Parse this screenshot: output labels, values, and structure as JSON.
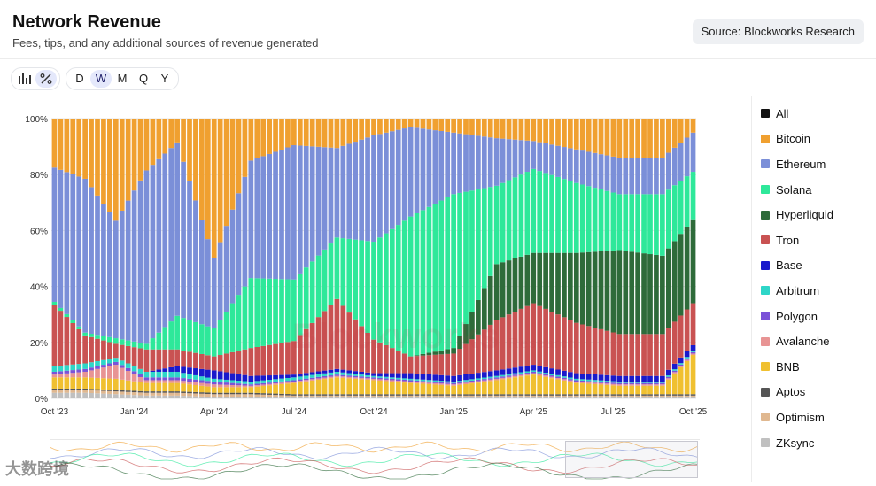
{
  "header": {
    "title": "Network Revenue",
    "subtitle": "Fees, tips, and any additional sources of revenue generated",
    "source_label": "Source: Blockworks Research"
  },
  "toolbar": {
    "view_buttons": [
      {
        "name": "bar-chart",
        "icon": "bar-chart-icon",
        "active": false
      },
      {
        "name": "percent",
        "icon": "percent-icon",
        "active": true
      }
    ],
    "intervals": [
      {
        "label": "D",
        "active": false
      },
      {
        "label": "W",
        "active": true
      },
      {
        "label": "M",
        "active": false
      },
      {
        "label": "Q",
        "active": false
      },
      {
        "label": "Y",
        "active": false
      }
    ]
  },
  "watermark": {
    "brand": "Blockworks",
    "sub": "Research"
  },
  "corner_watermark": "大数跨境",
  "legend": [
    {
      "label": "All",
      "color": "#111111"
    },
    {
      "label": "Bitcoin",
      "color": "#f0a030"
    },
    {
      "label": "Ethereum",
      "color": "#7b8fd8"
    },
    {
      "label": "Solana",
      "color": "#2ee89a"
    },
    {
      "label": "Hyperliquid",
      "color": "#2e6b3a"
    },
    {
      "label": "Tron",
      "color": "#c95252"
    },
    {
      "label": "Base",
      "color": "#1a1acc"
    },
    {
      "label": "Arbitrum",
      "color": "#2ed6c8"
    },
    {
      "label": "Polygon",
      "color": "#7b52d8"
    },
    {
      "label": "Avalanche",
      "color": "#e89494"
    },
    {
      "label": "BNB",
      "color": "#f0c030"
    },
    {
      "label": "Aptos",
      "color": "#555555"
    },
    {
      "label": "Optimism",
      "color": "#e0b890"
    },
    {
      "label": "ZKsync",
      "color": "#c0c0c0"
    }
  ],
  "chart_data": {
    "type": "bar",
    "stacking": "percent",
    "y_ticks": [
      "0%",
      "20%",
      "40%",
      "60%",
      "80%",
      "100%"
    ],
    "ylim": [
      0,
      100
    ],
    "x_ticks": [
      {
        "label": "Oct '23",
        "index": 0
      },
      {
        "label": "Jan '24",
        "index": 13
      },
      {
        "label": "Apr '24",
        "index": 26
      },
      {
        "label": "Jul '24",
        "index": 39
      },
      {
        "label": "Oct '24",
        "index": 52
      },
      {
        "label": "Jan '25",
        "index": 65
      },
      {
        "label": "Apr '25",
        "index": 78
      },
      {
        "label": "Jul '25",
        "index": 91
      },
      {
        "label": "Oct '25",
        "index": 104
      }
    ],
    "series_order": [
      "ZKsync",
      "Optimism",
      "Aptos",
      "BNB",
      "Avalanche",
      "Polygon",
      "Arbitrum",
      "Base",
      "Tron",
      "Hyperliquid",
      "Solana",
      "Ethereum",
      "Bitcoin"
    ],
    "anchors": [
      {
        "i": 0,
        "ZKsync": 2,
        "Optimism": 1,
        "Aptos": 0.5,
        "BNB": 4,
        "Avalanche": 1,
        "Polygon": 1,
        "Arbitrum": 2,
        "Base": 0,
        "Tron": 22,
        "Hyperliquid": 0,
        "Solana": 1,
        "Ethereum": 48
      },
      {
        "i": 5,
        "ZKsync": 2,
        "Optimism": 1,
        "Aptos": 0.5,
        "BNB": 4,
        "Avalanche": 2,
        "Polygon": 1,
        "Arbitrum": 2,
        "Base": 0,
        "Tron": 10,
        "Hyperliquid": 0,
        "Solana": 1,
        "Ethereum": 55
      },
      {
        "i": 10,
        "ZKsync": 1.5,
        "Optimism": 1,
        "Aptos": 0.5,
        "BNB": 4,
        "Avalanche": 5,
        "Polygon": 1,
        "Arbitrum": 1.5,
        "Base": 0,
        "Tron": 5,
        "Hyperliquid": 0,
        "Solana": 2,
        "Ethereum": 42
      },
      {
        "i": 15,
        "ZKsync": 1,
        "Optimism": 1,
        "Aptos": 0.5,
        "BNB": 3,
        "Avalanche": 1,
        "Polygon": 1,
        "Arbitrum": 2,
        "Base": 0,
        "Tron": 8,
        "Hyperliquid": 0,
        "Solana": 2,
        "Ethereum": 62
      },
      {
        "i": 20,
        "ZKsync": 1,
        "Optimism": 1,
        "Aptos": 0.5,
        "BNB": 3,
        "Avalanche": 1,
        "Polygon": 1,
        "Arbitrum": 2,
        "Base": 2,
        "Tron": 6,
        "Hyperliquid": 0,
        "Solana": 12,
        "Ethereum": 62
      },
      {
        "i": 26,
        "ZKsync": 0.5,
        "Optimism": 1,
        "Aptos": 0.5,
        "BNB": 2,
        "Avalanche": 1,
        "Polygon": 1,
        "Arbitrum": 1,
        "Base": 3,
        "Tron": 5,
        "Hyperliquid": 0,
        "Solana": 10,
        "Ethereum": 25
      },
      {
        "i": 32,
        "ZKsync": 0.5,
        "Optimism": 1,
        "Aptos": 0.5,
        "BNB": 2,
        "Avalanche": 0.5,
        "Polygon": 0.5,
        "Arbitrum": 1,
        "Base": 2,
        "Tron": 10,
        "Hyperliquid": 0,
        "Solana": 25,
        "Ethereum": 42
      },
      {
        "i": 39,
        "ZKsync": 0.5,
        "Optimism": 0.5,
        "Aptos": 0.5,
        "BNB": 4,
        "Avalanche": 0.5,
        "Polygon": 0.5,
        "Arbitrum": 1,
        "Base": 1,
        "Tron": 12,
        "Hyperliquid": 0,
        "Solana": 22,
        "Ethereum": 48
      },
      {
        "i": 46,
        "ZKsync": 0.5,
        "Optimism": 0.5,
        "Aptos": 0.5,
        "BNB": 6,
        "Avalanche": 0.5,
        "Polygon": 0.5,
        "Arbitrum": 1,
        "Base": 1,
        "Tron": 25,
        "Hyperliquid": 0,
        "Solana": 22,
        "Ethereum": 32
      },
      {
        "i": 52,
        "ZKsync": 0.5,
        "Optimism": 0.5,
        "Aptos": 0.5,
        "BNB": 5,
        "Avalanche": 0.5,
        "Polygon": 0.5,
        "Arbitrum": 0.5,
        "Base": 1,
        "Tron": 12,
        "Hyperliquid": 0,
        "Solana": 35,
        "Ethereum": 38
      },
      {
        "i": 58,
        "ZKsync": 0.5,
        "Optimism": 0.5,
        "Aptos": 0.5,
        "BNB": 4,
        "Avalanche": 0.5,
        "Polygon": 0.5,
        "Arbitrum": 0.5,
        "Base": 2,
        "Tron": 6,
        "Hyperliquid": 0,
        "Solana": 50,
        "Ethereum": 32
      },
      {
        "i": 65,
        "ZKsync": 0.5,
        "Optimism": 0.5,
        "Aptos": 0.5,
        "BNB": 3,
        "Avalanche": 0.5,
        "Polygon": 0.5,
        "Arbitrum": 0.5,
        "Base": 2,
        "Tron": 8,
        "Hyperliquid": 2,
        "Solana": 55,
        "Ethereum": 22
      },
      {
        "i": 72,
        "ZKsync": 0.5,
        "Optimism": 0.5,
        "Aptos": 0.5,
        "BNB": 5,
        "Avalanche": 0.5,
        "Polygon": 0.5,
        "Arbitrum": 0.5,
        "Base": 2,
        "Tron": 18,
        "Hyperliquid": 20,
        "Solana": 28,
        "Ethereum": 17
      },
      {
        "i": 78,
        "ZKsync": 0.5,
        "Optimism": 0.5,
        "Aptos": 0.5,
        "BNB": 7,
        "Avalanche": 0.5,
        "Polygon": 0.5,
        "Arbitrum": 0.5,
        "Base": 2,
        "Tron": 22,
        "Hyperliquid": 18,
        "Solana": 30,
        "Ethereum": 10
      },
      {
        "i": 85,
        "ZKsync": 0.5,
        "Optimism": 0.5,
        "Aptos": 0.5,
        "BNB": 4,
        "Avalanche": 0.5,
        "Polygon": 0.5,
        "Arbitrum": 0.5,
        "Base": 2,
        "Tron": 18,
        "Hyperliquid": 25,
        "Solana": 25,
        "Ethereum": 12
      },
      {
        "i": 92,
        "ZKsync": 0.5,
        "Optimism": 0.5,
        "Aptos": 0.5,
        "BNB": 3,
        "Avalanche": 0.5,
        "Polygon": 0.5,
        "Arbitrum": 0.5,
        "Base": 2,
        "Tron": 15,
        "Hyperliquid": 30,
        "Solana": 20,
        "Ethereum": 13
      },
      {
        "i": 99,
        "ZKsync": 0.5,
        "Optimism": 0.5,
        "Aptos": 0.5,
        "BNB": 3,
        "Avalanche": 0.5,
        "Polygon": 0.5,
        "Arbitrum": 0.5,
        "Base": 2,
        "Tron": 15,
        "Hyperliquid": 28,
        "Solana": 22,
        "Ethereum": 13
      },
      {
        "i": 104,
        "ZKsync": 0.5,
        "Optimism": 0.5,
        "Aptos": 0.5,
        "BNB": 14,
        "Avalanche": 0.5,
        "Polygon": 0.5,
        "Arbitrum": 0.5,
        "Base": 2,
        "Tron": 15,
        "Hyperliquid": 30,
        "Solana": 17,
        "Ethereum": 14
      }
    ]
  }
}
